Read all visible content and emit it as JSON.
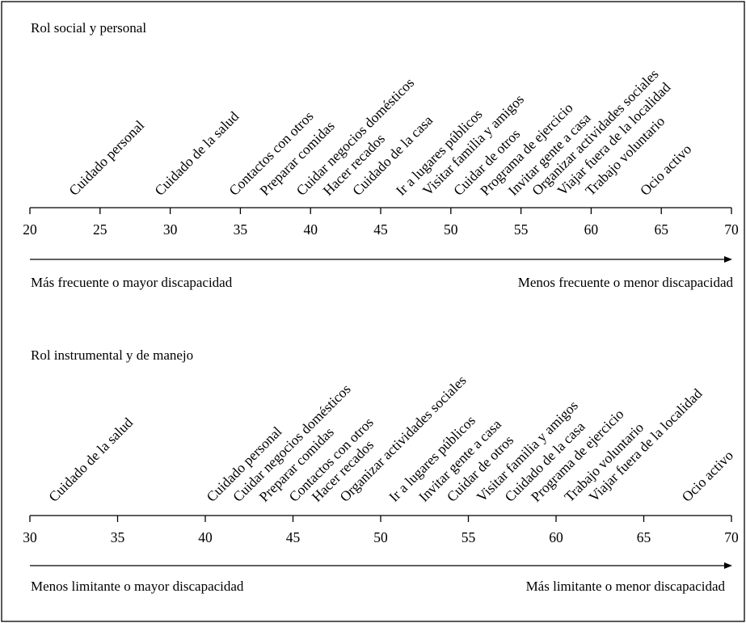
{
  "panels": [
    {
      "title": "Rol social y personal",
      "axis_ticks": [
        "20",
        "25",
        "30",
        "35",
        "40",
        "45",
        "50",
        "55",
        "60",
        "65",
        "70"
      ],
      "left_caption": "Más frecuente o mayor discapacidad",
      "right_caption": "Menos frecuente o menor discapacidad",
      "items": [
        {
          "label": "Cuidado personal",
          "value": 23.2
        },
        {
          "label": "Cuidado de la salud",
          "value": 29.3
        },
        {
          "label": "Contactos con otros",
          "value": 34.6
        },
        {
          "label": "Preparar comidas",
          "value": 36.8
        },
        {
          "label": "Cuidar negocios domésticos",
          "value": 39.4
        },
        {
          "label": "Hacer recados",
          "value": 41.3
        },
        {
          "label": "Cuidado de la casa",
          "value": 43.4
        },
        {
          "label": "Ir a lugares públicos",
          "value": 46.5
        },
        {
          "label": "Visitar familia y amigos",
          "value": 48.4
        },
        {
          "label": "Cuidar de otros",
          "value": 50.6
        },
        {
          "label": "Programa de ejercicio",
          "value": 52.5
        },
        {
          "label": "Invitar gente a casa",
          "value": 54.5
        },
        {
          "label": "Organizar actividades sociales",
          "value": 56.2
        },
        {
          "label": "Viajar fuera de la localidad",
          "value": 58.0
        },
        {
          "label": "Trabajo voluntario",
          "value": 60.0
        },
        {
          "label": "Ocio activo",
          "value": 63.9
        }
      ]
    },
    {
      "title": "Rol instrumental y de manejo",
      "axis_ticks": [
        "30",
        "35",
        "40",
        "45",
        "50",
        "55",
        "60",
        "65",
        "70"
      ],
      "left_caption": "Menos limitante o mayor discapacidad",
      "right_caption": "Más limitante o menor discapacidad",
      "items": [
        {
          "label": "Cuidado de la salud",
          "value": 31.4
        },
        {
          "label": "Cuidado personal",
          "value": 40.4
        },
        {
          "label": "Cuidar negocios domésticos",
          "value": 41.9
        },
        {
          "label": "Preparar comidas",
          "value": 43.4
        },
        {
          "label": "Contactos con otros",
          "value": 45.1
        },
        {
          "label": "Hacer recados",
          "value": 46.4
        },
        {
          "label": "Organizar actividades sociales",
          "value": 48.0
        },
        {
          "label": "Ir a lugares públicos",
          "value": 50.8
        },
        {
          "label": "Invitar gente a casa",
          "value": 52.5
        },
        {
          "label": "Cuidar de otros",
          "value": 54.1
        },
        {
          "label": "Visitar familia y amigos",
          "value": 55.8
        },
        {
          "label": "Cuidado de la casa",
          "value": 57.4
        },
        {
          "label": "Programa de ejercicio",
          "value": 58.9
        },
        {
          "label": "Trabajo voluntario",
          "value": 60.8
        },
        {
          "label": "Viajar fuera de la localidad",
          "value": 62.2
        },
        {
          "label": "Ocio activo",
          "value": 67.5
        }
      ]
    }
  ]
}
